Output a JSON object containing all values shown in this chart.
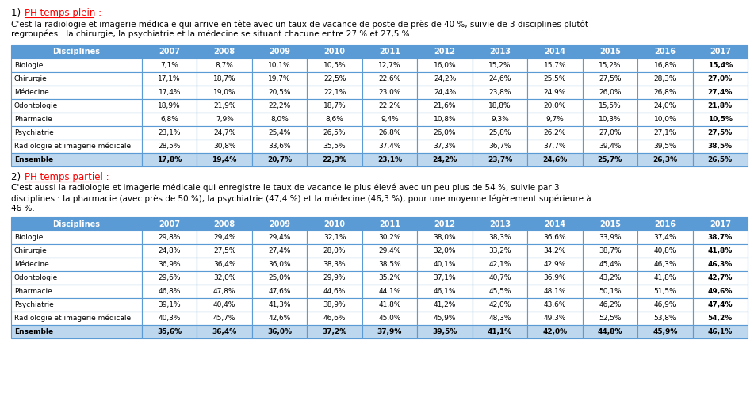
{
  "title1_prefix": "1)  ",
  "title1_text": "PH temps plein :",
  "title2_prefix": "2)  ",
  "title2_text": "PH temps partiel :",
  "text1": "C'est la radiologie et imagerie médicale qui arrive en tête avec un taux de vacance de poste de près de 40 %, suivie de 3 disciplines plutôt\nregroupées : la chirurgie, la psychiatrie et la médecine se situant chacune entre 27 % et 27,5 %.",
  "text2": "C'est aussi la radiologie et imagerie médicale qui enregistre le taux de vacance le plus élevé avec un peu plus de 54 %, suivie par 3\ndisciplines : la pharmacie (avec près de 50 %), la psychiatrie (47,4 %) et la médecine (46,3 %), pour une moyenne légèrement supérieure à\n46 %.",
  "years": [
    "2007",
    "2008",
    "2009",
    "2010",
    "2011",
    "2012",
    "2013",
    "2014",
    "2015",
    "2016",
    "2017"
  ],
  "table1_rows": [
    [
      "Biologie",
      "7,1%",
      "8,7%",
      "10,1%",
      "10,5%",
      "12,7%",
      "16,0%",
      "15,2%",
      "15,7%",
      "15,2%",
      "16,8%",
      "15,4%"
    ],
    [
      "Chirurgie",
      "17,1%",
      "18,7%",
      "19,7%",
      "22,5%",
      "22,6%",
      "24,2%",
      "24,6%",
      "25,5%",
      "27,5%",
      "28,3%",
      "27,0%"
    ],
    [
      "Médecine",
      "17,4%",
      "19,0%",
      "20,5%",
      "22,1%",
      "23,0%",
      "24,4%",
      "23,8%",
      "24,9%",
      "26,0%",
      "26,8%",
      "27,4%"
    ],
    [
      "Odontologie",
      "18,9%",
      "21,9%",
      "22,2%",
      "18,7%",
      "22,2%",
      "21,6%",
      "18,8%",
      "20,0%",
      "15,5%",
      "24,0%",
      "21,8%"
    ],
    [
      "Pharmacie",
      "6,8%",
      "7,9%",
      "8,0%",
      "8,6%",
      "9,4%",
      "10,8%",
      "9,3%",
      "9,7%",
      "10,3%",
      "10,0%",
      "10,5%"
    ],
    [
      "Psychiatrie",
      "23,1%",
      "24,7%",
      "25,4%",
      "26,5%",
      "26,8%",
      "26,0%",
      "25,8%",
      "26,2%",
      "27,0%",
      "27,1%",
      "27,5%"
    ],
    [
      "Radiologie et imagerie médicale",
      "28,5%",
      "30,8%",
      "33,6%",
      "35,5%",
      "37,4%",
      "37,3%",
      "36,7%",
      "37,7%",
      "39,4%",
      "39,5%",
      "38,5%"
    ],
    [
      "Ensemble",
      "17,8%",
      "19,4%",
      "20,7%",
      "22,3%",
      "23,1%",
      "24,2%",
      "23,7%",
      "24,6%",
      "25,7%",
      "26,3%",
      "26,5%"
    ]
  ],
  "table2_rows": [
    [
      "Biologie",
      "29,8%",
      "29,4%",
      "29,4%",
      "32,1%",
      "30,2%",
      "38,0%",
      "38,3%",
      "36,6%",
      "33,9%",
      "37,4%",
      "38,7%"
    ],
    [
      "Chirurgie",
      "24,8%",
      "27,5%",
      "27,4%",
      "28,0%",
      "29,4%",
      "32,0%",
      "33,2%",
      "34,2%",
      "38,7%",
      "40,8%",
      "41,8%"
    ],
    [
      "Médecine",
      "36,9%",
      "36,4%",
      "36,0%",
      "38,3%",
      "38,5%",
      "40,1%",
      "42,1%",
      "42,9%",
      "45,4%",
      "46,3%",
      "46,3%"
    ],
    [
      "Odontologie",
      "29,6%",
      "32,0%",
      "25,0%",
      "29,9%",
      "35,2%",
      "37,1%",
      "40,7%",
      "36,9%",
      "43,2%",
      "41,8%",
      "42,7%"
    ],
    [
      "Pharmacie",
      "46,8%",
      "47,8%",
      "47,6%",
      "44,6%",
      "44,1%",
      "46,1%",
      "45,5%",
      "48,1%",
      "50,1%",
      "51,5%",
      "49,6%"
    ],
    [
      "Psychiatrie",
      "39,1%",
      "40,4%",
      "41,3%",
      "38,9%",
      "41,8%",
      "41,2%",
      "42,0%",
      "43,6%",
      "46,2%",
      "46,9%",
      "47,4%"
    ],
    [
      "Radiologie et imagerie médicale",
      "40,3%",
      "45,7%",
      "42,6%",
      "46,6%",
      "45,0%",
      "45,9%",
      "48,3%",
      "49,3%",
      "52,5%",
      "53,8%",
      "54,2%"
    ],
    [
      "Ensemble",
      "35,6%",
      "36,4%",
      "36,0%",
      "37,2%",
      "37,9%",
      "39,5%",
      "41,1%",
      "42,0%",
      "44,8%",
      "45,9%",
      "46,1%"
    ]
  ],
  "header_bg": "#5b9bd5",
  "header_text": "#ffffff",
  "ensemble_bg": "#bdd7ee",
  "border_color": "#5b9bd5",
  "title_color": "#ff0000",
  "fig_width": 9.51,
  "fig_height": 5.21
}
